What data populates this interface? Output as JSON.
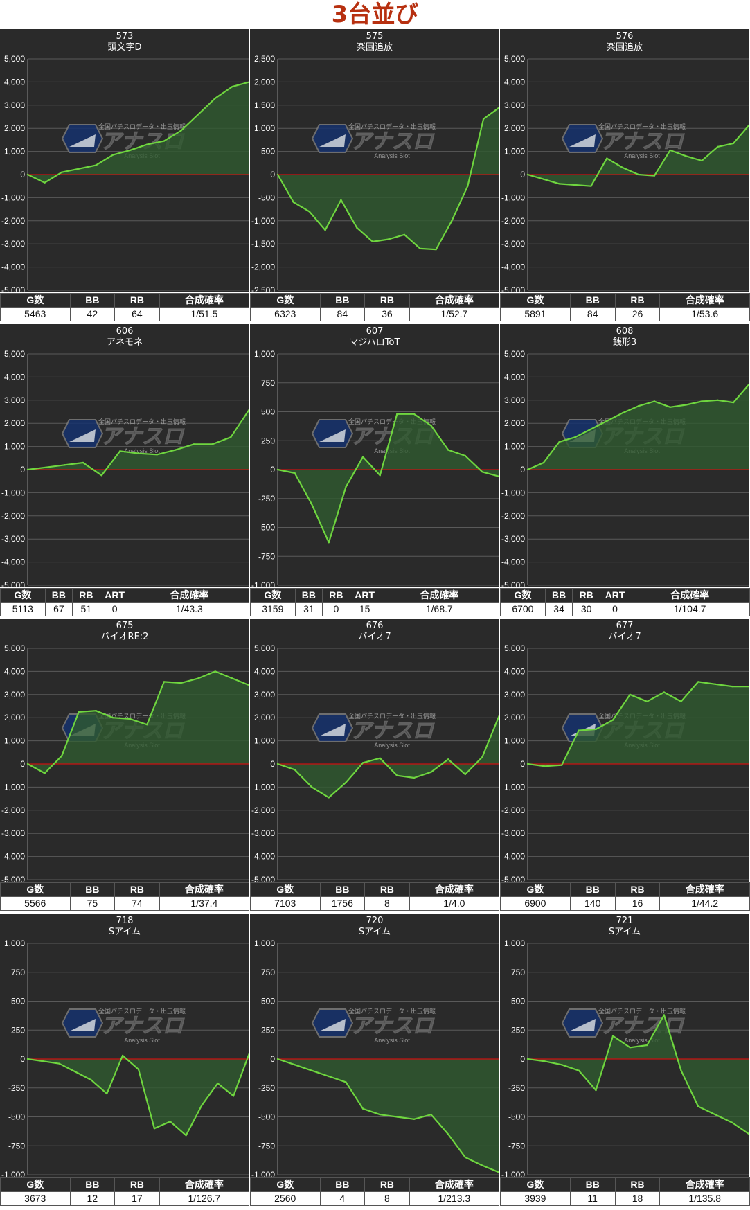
{
  "page": {
    "title": "3台並び"
  },
  "watermark": {
    "top": "全国パチスロデータ・出玉情報",
    "main": "アナスロ",
    "sub": "Analysis Slot"
  },
  "colors": {
    "background": "#2a2a2a",
    "line": "#6fd63f",
    "fill": "#2f5a2f",
    "zero_line": "#cc1111",
    "title": "#b73010"
  },
  "chart_data": [
    {
      "id": "573",
      "name": "頭文字D",
      "type": "area",
      "yticks": [
        "5,000",
        "4,000",
        "3,000",
        "2,000",
        "1,000",
        "0",
        "-1,000",
        "-2,000",
        "-3,000",
        "-4,000",
        "-5,000"
      ],
      "ylim": [
        -5000,
        5000
      ],
      "values": [
        0,
        -350,
        100,
        250,
        400,
        850,
        1050,
        1300,
        1450,
        1900,
        2600,
        3300,
        3800,
        4000
      ],
      "stats": {
        "headers": [
          "G数",
          "BB",
          "RB",
          "合成確率"
        ],
        "values": [
          "5463",
          "42",
          "64",
          "1/51.5"
        ]
      }
    },
    {
      "id": "575",
      "name": "楽園追放",
      "type": "area",
      "yticks": [
        "2,500",
        "2,000",
        "1,500",
        "1,000",
        "500",
        "0",
        "-500",
        "-1,000",
        "-1,500",
        "-2,000",
        "-2,500"
      ],
      "ylim": [
        -2500,
        2500
      ],
      "values": [
        0,
        -600,
        -800,
        -1200,
        -550,
        -1150,
        -1450,
        -1400,
        -1300,
        -1600,
        -1620,
        -1000,
        -250,
        1200,
        1450
      ],
      "stats": {
        "headers": [
          "G数",
          "BB",
          "RB",
          "合成確率"
        ],
        "values": [
          "6323",
          "84",
          "36",
          "1/52.7"
        ]
      }
    },
    {
      "id": "576",
      "name": "楽園追放",
      "type": "area",
      "yticks": [
        "5,000",
        "4,000",
        "3,000",
        "2,000",
        "1,000",
        "0",
        "-1,000",
        "-2,000",
        "-3,000",
        "-4,000",
        "-5,000"
      ],
      "ylim": [
        -5000,
        5000
      ],
      "values": [
        0,
        -200,
        -400,
        -450,
        -500,
        700,
        300,
        0,
        -50,
        1050,
        800,
        600,
        1200,
        1350,
        2150
      ],
      "stats": {
        "headers": [
          "G数",
          "BB",
          "RB",
          "合成確率"
        ],
        "values": [
          "5891",
          "84",
          "26",
          "1/53.6"
        ]
      }
    },
    {
      "id": "606",
      "name": "アネモネ",
      "type": "area",
      "yticks": [
        "5,000",
        "4,000",
        "3,000",
        "2,000",
        "1,000",
        "0",
        "-1,000",
        "-2,000",
        "-3,000",
        "-4,000",
        "-5,000"
      ],
      "ylim": [
        -5000,
        5000
      ],
      "values": [
        0,
        100,
        200,
        300,
        -250,
        800,
        700,
        650,
        850,
        1100,
        1100,
        1400,
        2600
      ],
      "stats": {
        "headers": [
          "G数",
          "BB",
          "RB",
          "ART",
          "合成確率"
        ],
        "values": [
          "5113",
          "67",
          "51",
          "0",
          "1/43.3"
        ]
      }
    },
    {
      "id": "607",
      "name": "マジハロToT",
      "type": "area",
      "yticks": [
        "1,000",
        "750",
        "500",
        "250",
        "0",
        "-250",
        "-500",
        "-750",
        "-1,000"
      ],
      "ylim": [
        -1000,
        1000
      ],
      "values": [
        0,
        -30,
        -300,
        -630,
        -150,
        110,
        -50,
        480,
        480,
        380,
        170,
        120,
        -20,
        -60
      ],
      "stats": {
        "headers": [
          "G数",
          "BB",
          "RB",
          "ART",
          "合成確率"
        ],
        "values": [
          "3159",
          "31",
          "0",
          "15",
          "1/68.7"
        ]
      }
    },
    {
      "id": "608",
      "name": "銭形3",
      "type": "area",
      "yticks": [
        "5,000",
        "4,000",
        "3,000",
        "2,000",
        "1,000",
        "0",
        "-1,000",
        "-2,000",
        "-3,000",
        "-4,000",
        "-5,000"
      ],
      "ylim": [
        -5000,
        5000
      ],
      "values": [
        0,
        300,
        1200,
        1400,
        1750,
        2100,
        2450,
        2750,
        2950,
        2700,
        2800,
        2950,
        3000,
        2900,
        3700
      ],
      "stats": {
        "headers": [
          "G数",
          "BB",
          "RB",
          "ART",
          "合成確率"
        ],
        "values": [
          "6700",
          "34",
          "30",
          "0",
          "1/104.7"
        ]
      }
    },
    {
      "id": "675",
      "name": "バイオRE:2",
      "type": "area",
      "yticks": [
        "5,000",
        "4,000",
        "3,000",
        "2,000",
        "1,000",
        "0",
        "-1,000",
        "-2,000",
        "-3,000",
        "-4,000",
        "-5,000"
      ],
      "ylim": [
        -5000,
        5000
      ],
      "values": [
        0,
        -400,
        350,
        2250,
        2300,
        2000,
        1950,
        1700,
        3550,
        3500,
        3700,
        4000,
        3700,
        3400
      ],
      "stats": {
        "headers": [
          "G数",
          "BB",
          "RB",
          "合成確率"
        ],
        "values": [
          "5566",
          "75",
          "74",
          "1/37.4"
        ]
      }
    },
    {
      "id": "676",
      "name": "バイオ7",
      "type": "area",
      "yticks": [
        "5,000",
        "4,000",
        "3,000",
        "2,000",
        "1,000",
        "0",
        "-1,000",
        "-2,000",
        "-3,000",
        "-4,000",
        "-5,000"
      ],
      "ylim": [
        -5000,
        5000
      ],
      "values": [
        0,
        -250,
        -1000,
        -1450,
        -800,
        50,
        250,
        -500,
        -600,
        -350,
        200,
        -450,
        300,
        2100
      ],
      "stats": {
        "headers": [
          "G数",
          "BB",
          "RB",
          "合成確率"
        ],
        "values": [
          "7103",
          "1756",
          "8",
          "1/4.0"
        ]
      }
    },
    {
      "id": "677",
      "name": "バイオ7",
      "type": "area",
      "yticks": [
        "5,000",
        "4,000",
        "3,000",
        "2,000",
        "1,000",
        "0",
        "-1,000",
        "-2,000",
        "-3,000",
        "-4,000",
        "-5,000"
      ],
      "ylim": [
        -5000,
        5000
      ],
      "values": [
        0,
        -100,
        -50,
        1450,
        1500,
        1900,
        3000,
        2700,
        3100,
        2700,
        3550,
        3450,
        3350,
        3350
      ],
      "stats": {
        "headers": [
          "G数",
          "BB",
          "RB",
          "合成確率"
        ],
        "values": [
          "6900",
          "140",
          "16",
          "1/44.2"
        ]
      }
    },
    {
      "id": "718",
      "name": "Sアイム",
      "type": "area",
      "yticks": [
        "1,000",
        "750",
        "500",
        "250",
        "0",
        "-250",
        "-500",
        "-750",
        "-1,000"
      ],
      "ylim": [
        -1000,
        1000
      ],
      "values": [
        0,
        -20,
        -40,
        -110,
        -180,
        -300,
        30,
        -90,
        -600,
        -540,
        -660,
        -400,
        -210,
        -320,
        50
      ],
      "stats": {
        "headers": [
          "G数",
          "BB",
          "RB",
          "合成確率"
        ],
        "values": [
          "3673",
          "12",
          "17",
          "1/126.7"
        ]
      }
    },
    {
      "id": "720",
      "name": "Sアイム",
      "type": "area",
      "yticks": [
        "1,000",
        "750",
        "500",
        "250",
        "0",
        "-250",
        "-500",
        "-750",
        "-1,000"
      ],
      "ylim": [
        -1000,
        1000
      ],
      "values": [
        0,
        -50,
        -100,
        -150,
        -200,
        -430,
        -480,
        -500,
        -520,
        -480,
        -650,
        -850,
        -920,
        -980
      ],
      "stats": {
        "headers": [
          "G数",
          "BB",
          "RB",
          "合成確率"
        ],
        "values": [
          "2560",
          "4",
          "8",
          "1/213.3"
        ]
      }
    },
    {
      "id": "721",
      "name": "Sアイム",
      "type": "area",
      "yticks": [
        "1,000",
        "750",
        "500",
        "250",
        "0",
        "-250",
        "-500",
        "-750",
        "-1,000"
      ],
      "ylim": [
        -1000,
        1000
      ],
      "values": [
        0,
        -20,
        -50,
        -100,
        -270,
        200,
        100,
        120,
        380,
        -100,
        -410,
        -480,
        -550,
        -650
      ],
      "stats": {
        "headers": [
          "G数",
          "BB",
          "RB",
          "合成確率"
        ],
        "values": [
          "3939",
          "11",
          "18",
          "1/135.8"
        ]
      }
    }
  ]
}
